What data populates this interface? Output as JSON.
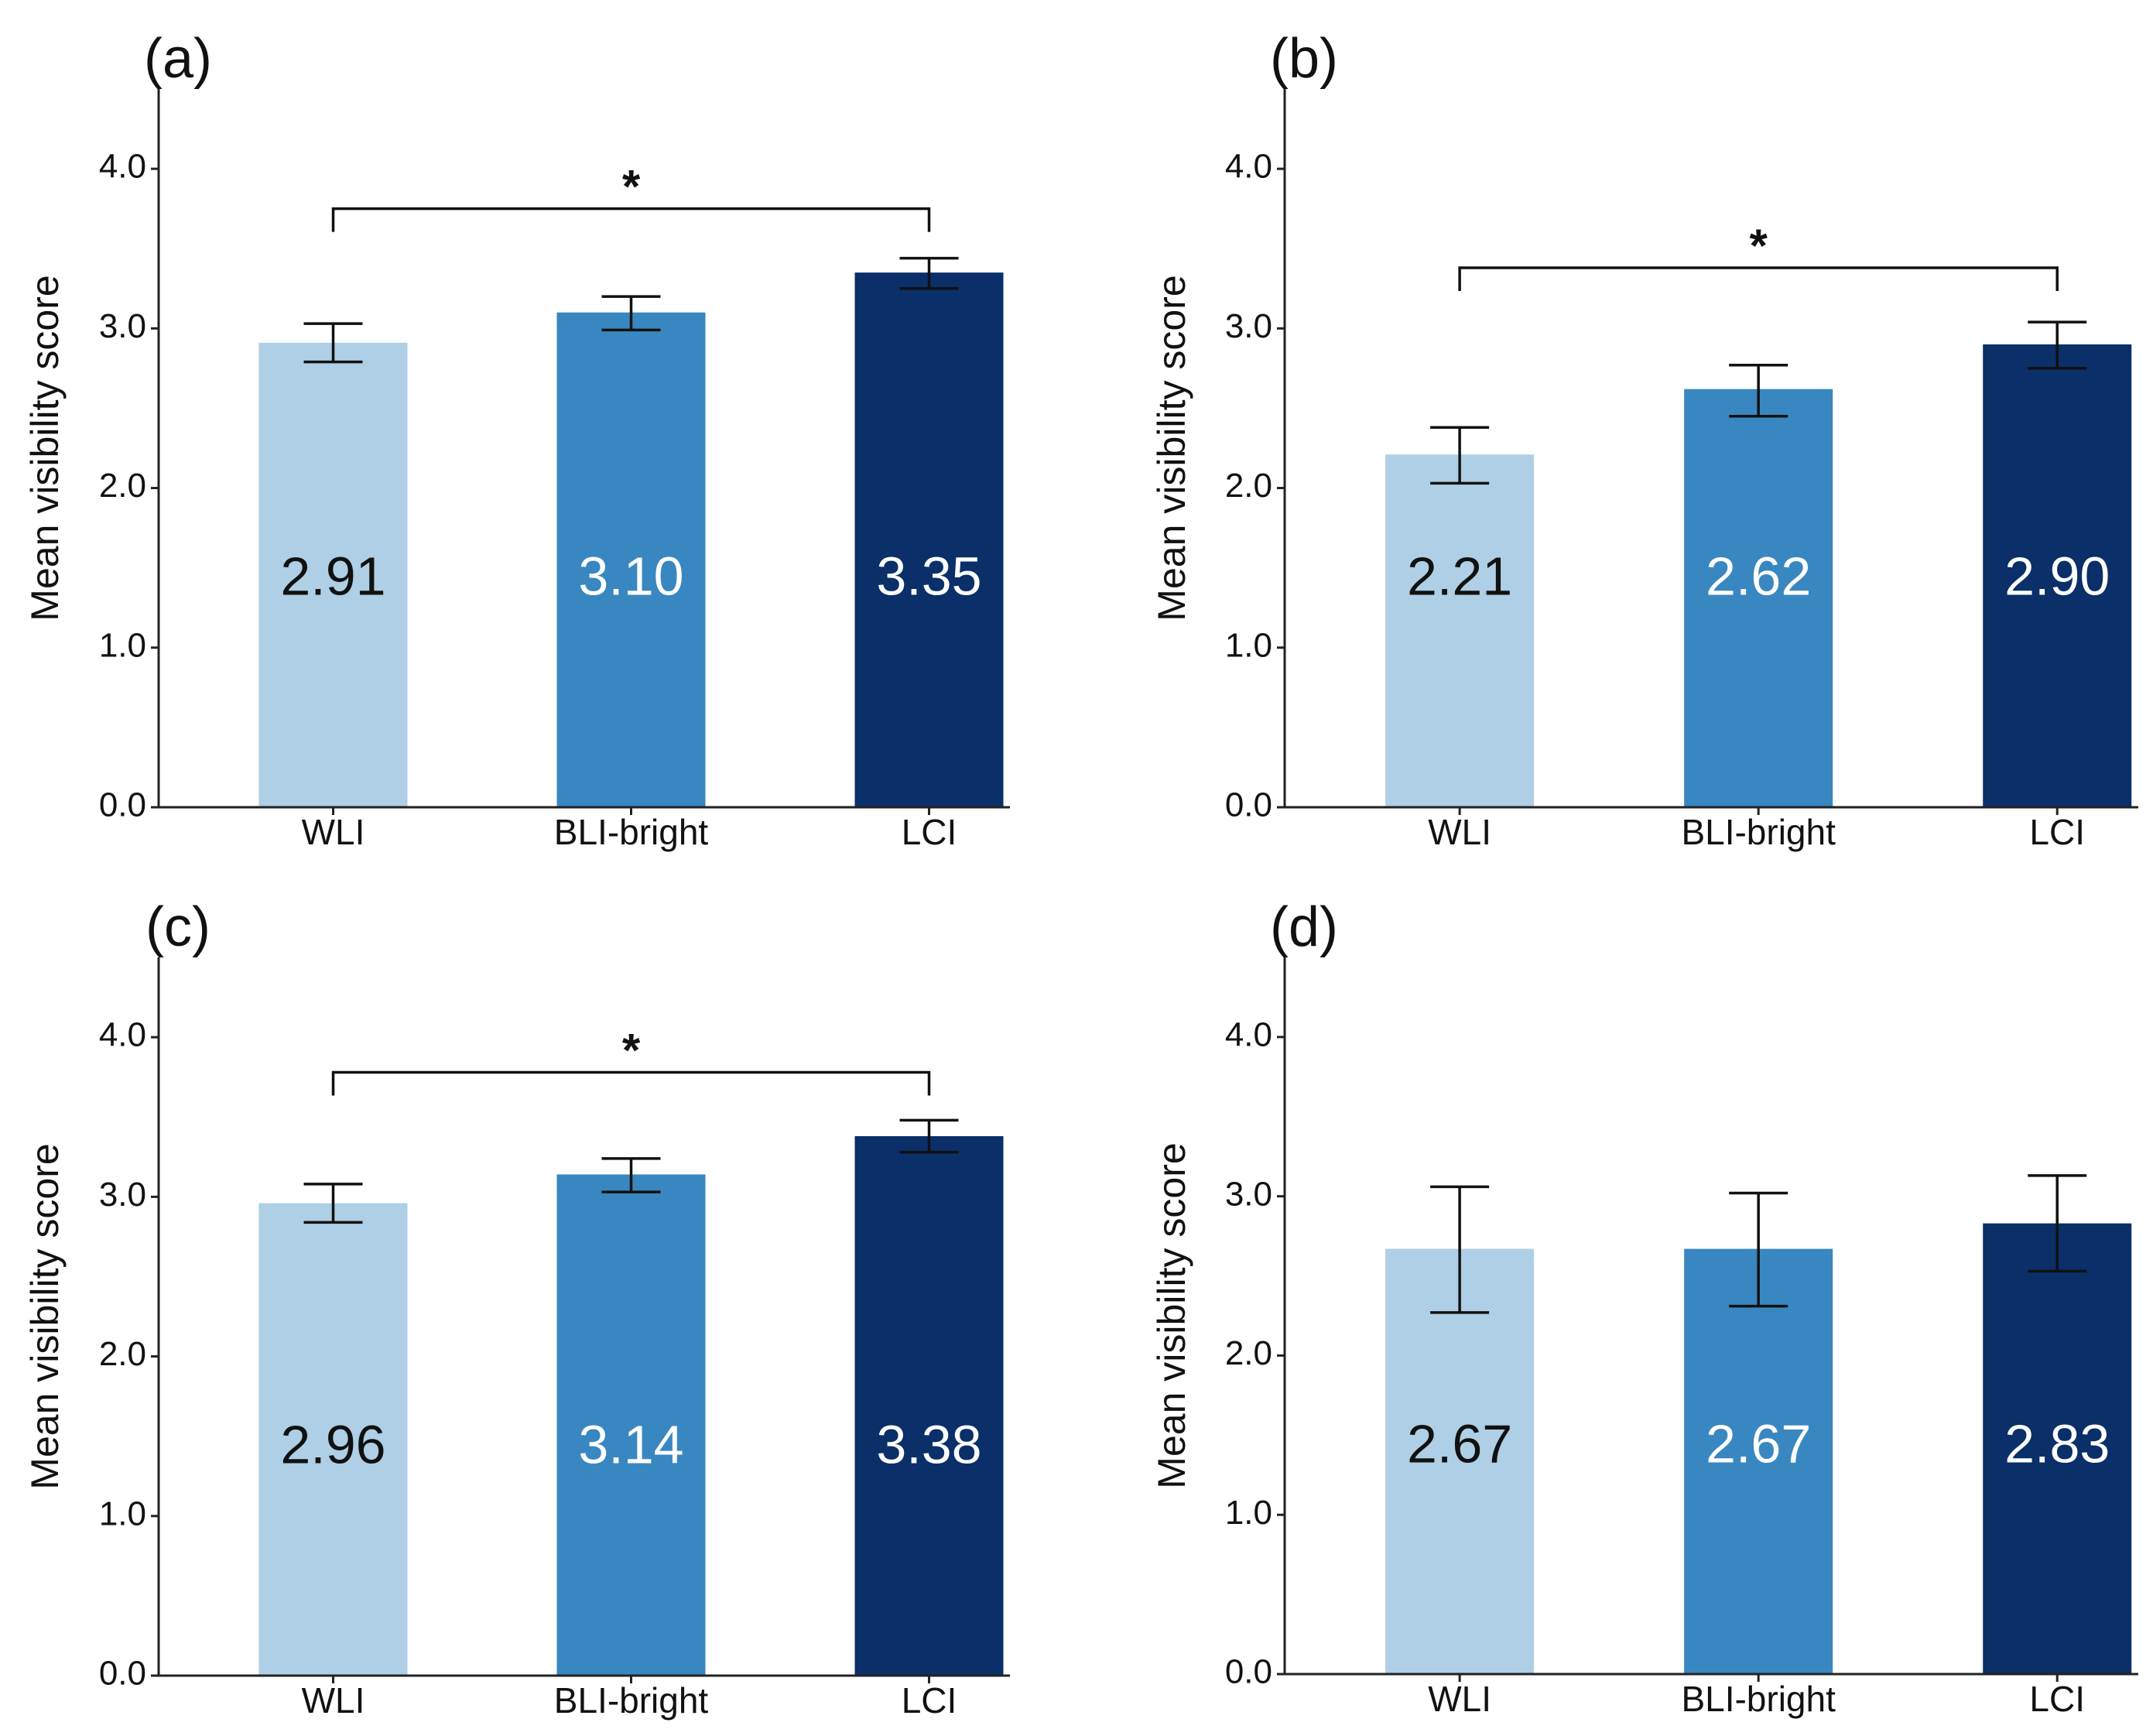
{
  "colors": {
    "WLI": "#aecfe5",
    "BLI-bright": "#3987c1",
    "LCI": "#0a2f69",
    "label_dark": "#111111",
    "label_light": "#ffffff"
  },
  "chart_data": [
    {
      "type": "bar",
      "panel": "(a)",
      "categories": [
        "WLI",
        "BLI-bright",
        "LCI"
      ],
      "values": [
        2.91,
        3.1,
        3.35
      ],
      "value_labels": [
        "2.91",
        "3.10",
        "3.35"
      ],
      "error": [
        [
          2.79,
          3.03
        ],
        [
          2.99,
          3.2
        ],
        [
          3.25,
          3.44
        ]
      ],
      "ylabel": "Mean visibility score",
      "ylim": [
        0,
        4.5
      ],
      "yticks": [
        0,
        1,
        2,
        3,
        4
      ],
      "ytick_labels": [
        "0.0",
        "1.0",
        "2.0",
        "3.0",
        "4.0"
      ],
      "significance": {
        "from": 0,
        "to": 2,
        "level": 3.75,
        "label": "*"
      }
    },
    {
      "type": "bar",
      "panel": "(b)",
      "categories": [
        "WLI",
        "BLI-bright",
        "LCI"
      ],
      "values": [
        2.21,
        2.62,
        2.9
      ],
      "value_labels": [
        "2.21",
        "2.62",
        "2.90"
      ],
      "error": [
        [
          2.03,
          2.38
        ],
        [
          2.45,
          2.77
        ],
        [
          2.75,
          3.04
        ]
      ],
      "ylabel": "Mean visibility score",
      "ylim": [
        0,
        4.5
      ],
      "yticks": [
        0,
        1,
        2,
        3,
        4
      ],
      "ytick_labels": [
        "0.0",
        "1.0",
        "2.0",
        "3.0",
        "4.0"
      ],
      "significance": {
        "from": 0,
        "to": 2,
        "level": 3.38,
        "label": "*"
      }
    },
    {
      "type": "bar",
      "panel": "(c)",
      "categories": [
        "WLI",
        "BLI-bright",
        "LCI"
      ],
      "values": [
        2.96,
        3.14,
        3.38
      ],
      "value_labels": [
        "2.96",
        "3.14",
        "3.38"
      ],
      "error": [
        [
          2.84,
          3.08
        ],
        [
          3.03,
          3.24
        ],
        [
          3.28,
          3.48
        ]
      ],
      "ylabel": "Mean visibility score",
      "ylim": [
        0,
        4.5
      ],
      "yticks": [
        0,
        1,
        2,
        3,
        4
      ],
      "ytick_labels": [
        "0.0",
        "1.0",
        "2.0",
        "3.0",
        "4.0"
      ],
      "significance": {
        "from": 0,
        "to": 2,
        "level": 3.78,
        "label": "*"
      }
    },
    {
      "type": "bar",
      "panel": "(d)",
      "categories": [
        "WLI",
        "BLI-bright",
        "LCI"
      ],
      "values": [
        2.67,
        2.67,
        2.83
      ],
      "value_labels": [
        "2.67",
        "2.67",
        "2.83"
      ],
      "error": [
        [
          2.27,
          3.06
        ],
        [
          2.31,
          3.02
        ],
        [
          2.53,
          3.13
        ]
      ],
      "ylabel": "Mean visibility score",
      "ylim": [
        0,
        4.5
      ],
      "yticks": [
        0,
        1,
        2,
        3,
        4
      ],
      "ytick_labels": [
        "0.0",
        "1.0",
        "2.0",
        "3.0",
        "4.0"
      ],
      "significance": null
    }
  ]
}
